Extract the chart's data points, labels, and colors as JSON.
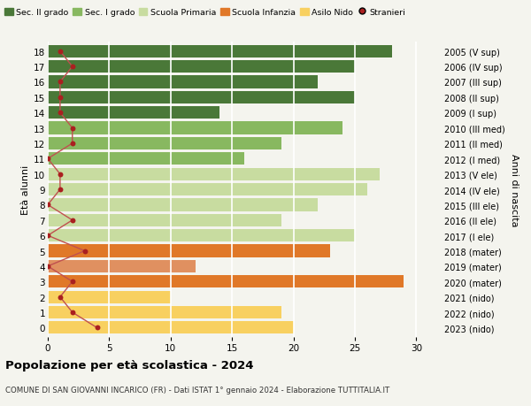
{
  "ages": [
    0,
    1,
    2,
    3,
    4,
    5,
    6,
    7,
    8,
    9,
    10,
    11,
    12,
    13,
    14,
    15,
    16,
    17,
    18
  ],
  "right_labels": [
    "2023 (nido)",
    "2022 (nido)",
    "2021 (nido)",
    "2020 (mater)",
    "2019 (mater)",
    "2018 (mater)",
    "2017 (I ele)",
    "2016 (II ele)",
    "2015 (III ele)",
    "2014 (IV ele)",
    "2013 (V ele)",
    "2012 (I med)",
    "2011 (II med)",
    "2010 (III med)",
    "2009 (I sup)",
    "2008 (II sup)",
    "2007 (III sup)",
    "2006 (IV sup)",
    "2005 (V sup)"
  ],
  "bar_values": [
    20,
    19,
    10,
    29,
    12,
    23,
    25,
    19,
    22,
    26,
    27,
    16,
    19,
    24,
    14,
    25,
    22,
    25,
    28
  ],
  "bar_colors": [
    "#f8d060",
    "#f8d060",
    "#f8d060",
    "#e07828",
    "#e09060",
    "#e07828",
    "#c8dca0",
    "#c8dca0",
    "#c8dca0",
    "#c8dca0",
    "#c8dca0",
    "#88b860",
    "#88b860",
    "#88b860",
    "#4a7838",
    "#4a7838",
    "#4a7838",
    "#4a7838",
    "#4a7838"
  ],
  "stranieri_values": [
    4,
    2,
    1,
    2,
    0,
    3,
    0,
    2,
    0,
    1,
    1,
    0,
    2,
    2,
    1,
    1,
    1,
    2,
    1
  ],
  "legend_labels": [
    "Sec. II grado",
    "Sec. I grado",
    "Scuola Primaria",
    "Scuola Infanzia",
    "Asilo Nido",
    "Stranieri"
  ],
  "legend_colors": [
    "#4a7838",
    "#88b860",
    "#c8dca0",
    "#e07828",
    "#f8d060",
    "#aa2020"
  ],
  "title": "Popolazione per età scolastica - 2024",
  "subtitle": "COMUNE DI SAN GIOVANNI INCARICO (FR) - Dati ISTAT 1° gennaio 2024 - Elaborazione TUTTITALIA.IT",
  "ylabel_left": "Età alunni",
  "ylabel_right": "Anni di nascita",
  "xlim": [
    0,
    32
  ],
  "xticks": [
    0,
    5,
    10,
    15,
    20,
    25,
    30
  ],
  "background_color": "#f4f4ee",
  "stranieri_color": "#aa2020",
  "stranieri_line_color": "#c05050"
}
